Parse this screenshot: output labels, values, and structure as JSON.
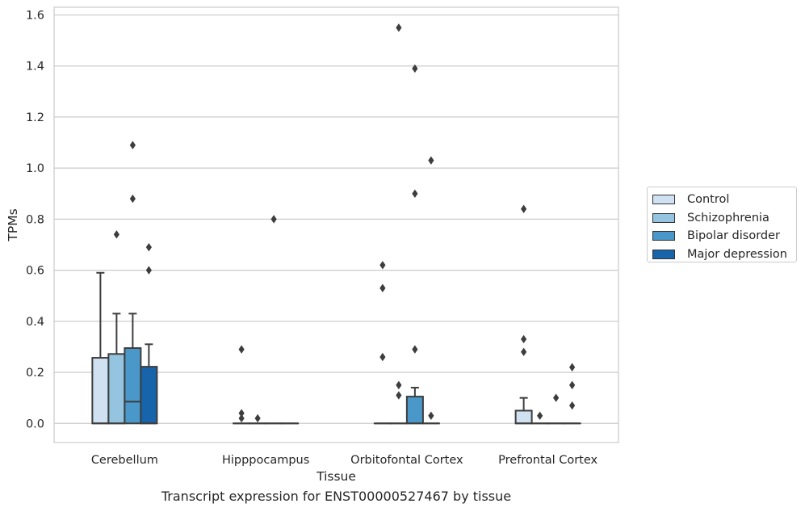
{
  "caption": "Transcript expression for ENST00000527467 by tissue",
  "chart_data": {
    "type": "box",
    "xlabel": "Tissue",
    "ylabel": "TPMs",
    "ylim": [
      -0.075,
      1.63
    ],
    "yticks": [
      "0.0",
      "0.2",
      "0.4",
      "0.6",
      "0.8",
      "1.0",
      "1.2",
      "1.4",
      "1.6"
    ],
    "grid": "horizontal",
    "legend_position": "right",
    "categories": [
      "Cerebellum",
      "Hipppocampus",
      "Orbitofontal Cortex",
      "Prefrontal Cortex"
    ],
    "series": [
      {
        "name": "Control",
        "color": "#d0e1f2",
        "boxes": [
          {
            "q1": 0.0,
            "median": 0.0,
            "q3": 0.257,
            "whisker_low": 0.0,
            "whisker_high": 0.59,
            "outliers": []
          },
          {
            "q1": 0.0,
            "median": 0.0,
            "q3": 0.0,
            "whisker_low": 0.0,
            "whisker_high": 0.0,
            "outliers": [
              0.29,
              0.04,
              0.02
            ]
          },
          {
            "q1": 0.0,
            "median": 0.0,
            "q3": 0.0,
            "whisker_low": 0.0,
            "whisker_high": 0.0,
            "outliers": [
              0.62,
              0.53,
              0.26
            ]
          },
          {
            "q1": 0.0,
            "median": 0.0,
            "q3": 0.05,
            "whisker_low": 0.0,
            "whisker_high": 0.1,
            "outliers": [
              0.84,
              0.33,
              0.28
            ]
          }
        ]
      },
      {
        "name": "Schizophrenia",
        "color": "#94c4df",
        "boxes": [
          {
            "q1": 0.0,
            "median": 0.0,
            "q3": 0.272,
            "whisker_low": 0.0,
            "whisker_high": 0.43,
            "outliers": [
              0.74
            ]
          },
          {
            "q1": 0.0,
            "median": 0.0,
            "q3": 0.0,
            "whisker_low": 0.0,
            "whisker_high": 0.0,
            "outliers": [
              0.02
            ]
          },
          {
            "q1": 0.0,
            "median": 0.0,
            "q3": 0.0,
            "whisker_low": 0.0,
            "whisker_high": 0.0,
            "outliers": [
              1.55,
              0.15,
              0.11
            ]
          },
          {
            "q1": 0.0,
            "median": 0.0,
            "q3": 0.0,
            "whisker_low": 0.0,
            "whisker_high": 0.0,
            "outliers": [
              0.03
            ]
          }
        ]
      },
      {
        "name": "Bipolar disorder",
        "color": "#4a98c9",
        "boxes": [
          {
            "q1": 0.0,
            "median": 0.085,
            "q3": 0.295,
            "whisker_low": 0.0,
            "whisker_high": 0.43,
            "outliers": [
              1.09,
              0.88
            ]
          },
          {
            "q1": 0.0,
            "median": 0.0,
            "q3": 0.0,
            "whisker_low": 0.0,
            "whisker_high": 0.0,
            "outliers": [
              0.8
            ]
          },
          {
            "q1": 0.0,
            "median": 0.0,
            "q3": 0.105,
            "whisker_low": 0.0,
            "whisker_high": 0.14,
            "outliers": [
              1.39,
              0.9,
              0.29
            ]
          },
          {
            "q1": 0.0,
            "median": 0.0,
            "q3": 0.0,
            "whisker_low": 0.0,
            "whisker_high": 0.0,
            "outliers": [
              0.1
            ]
          }
        ]
      },
      {
        "name": "Major depression",
        "color": "#1764ab",
        "boxes": [
          {
            "q1": 0.0,
            "median": 0.0,
            "q3": 0.222,
            "whisker_low": 0.0,
            "whisker_high": 0.31,
            "outliers": [
              0.69,
              0.6
            ]
          },
          {
            "q1": 0.0,
            "median": 0.0,
            "q3": 0.0,
            "whisker_low": 0.0,
            "whisker_high": 0.0,
            "outliers": []
          },
          {
            "q1": 0.0,
            "median": 0.0,
            "q3": 0.0,
            "whisker_low": 0.0,
            "whisker_high": 0.0,
            "outliers": [
              1.03,
              0.03
            ]
          },
          {
            "q1": 0.0,
            "median": 0.0,
            "q3": 0.0,
            "whisker_low": 0.0,
            "whisker_high": 0.0,
            "outliers": [
              0.22,
              0.15,
              0.07
            ]
          }
        ]
      }
    ]
  }
}
